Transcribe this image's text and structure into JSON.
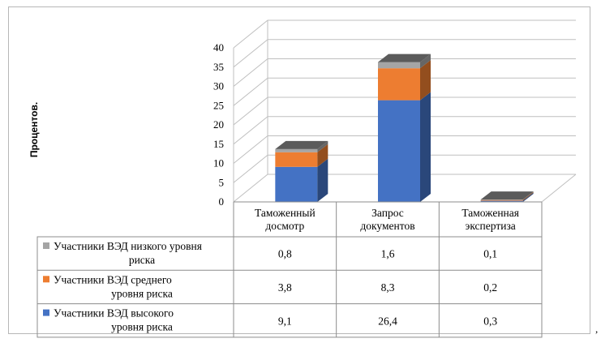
{
  "chart_data": {
    "type": "bar",
    "stacked": true,
    "three_d": true,
    "title": "",
    "xlabel": "",
    "ylabel": "Процентов.",
    "ylim": [
      0,
      40
    ],
    "yticks": [
      "0",
      "5",
      "10",
      "15",
      "20",
      "25",
      "30",
      "35",
      "40"
    ],
    "categories": [
      "Таможенный досмотр",
      "Запрос документов",
      "Таможенная экспертиза"
    ],
    "series": [
      {
        "name": "Участники ВЭД высокого уровня риска",
        "color": "#4472c4",
        "values": [
          9.1,
          26.4,
          0.3
        ],
        "labels": [
          "9,1",
          "26,4",
          "0,3"
        ]
      },
      {
        "name": "Участники ВЭД среднего уровня риска",
        "color": "#ed7d31",
        "values": [
          3.8,
          8.3,
          0.2
        ],
        "labels": [
          "3,8",
          "8,3",
          "0,2"
        ]
      },
      {
        "name": "Участники ВЭД низкого уровня риска",
        "color": "#a5a5a5",
        "values": [
          0.8,
          1.6,
          0.1
        ],
        "labels": [
          "0,8",
          "1,6",
          "0,1"
        ]
      }
    ],
    "table_rows_order": [
      2,
      1,
      0
    ],
    "grid": true,
    "legend": "data-table"
  },
  "trailing_mark": ","
}
